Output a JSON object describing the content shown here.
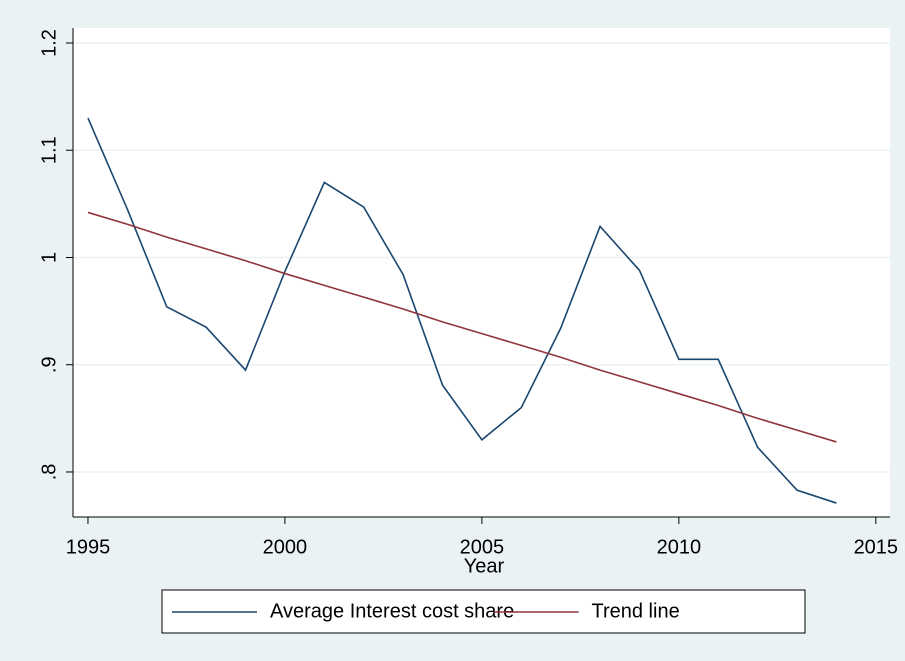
{
  "chart_data": {
    "type": "line",
    "x_label": "Year",
    "x": [
      1995,
      1996,
      1997,
      1998,
      1999,
      2000,
      2001,
      2002,
      2003,
      2004,
      2005,
      2006,
      2007,
      2008,
      2009,
      2010,
      2011,
      2012,
      2013,
      2014
    ],
    "series": [
      {
        "name": "Average Interest cost share",
        "color": "#1a476f",
        "values": [
          1.13,
          1.045,
          0.954,
          0.935,
          0.895,
          0.987,
          1.07,
          1.047,
          0.984,
          0.881,
          0.83,
          0.86,
          0.934,
          1.029,
          0.988,
          0.905,
          0.905,
          0.823,
          0.783,
          0.771
        ]
      },
      {
        "name": "Trend line",
        "color": "#90353b",
        "values": [
          1.042,
          1.031,
          1.019,
          1.008,
          0.997,
          0.985,
          0.974,
          0.963,
          0.952,
          0.94,
          0.929,
          0.918,
          0.907,
          0.895,
          0.884,
          0.873,
          0.862,
          0.85,
          0.839,
          0.828
        ]
      }
    ],
    "xlim": [
      1994.62,
      2015.36
    ],
    "xticks": [
      1995,
      2000,
      2005,
      2010,
      2015
    ],
    "ylim": [
      0.758,
      1.214
    ],
    "yticks": [
      {
        "value": 0.8,
        "label": ".8"
      },
      {
        "value": 0.9,
        "label": ".9"
      },
      1,
      1.1,
      1.2
    ],
    "grid": true,
    "legend": "bottom"
  }
}
